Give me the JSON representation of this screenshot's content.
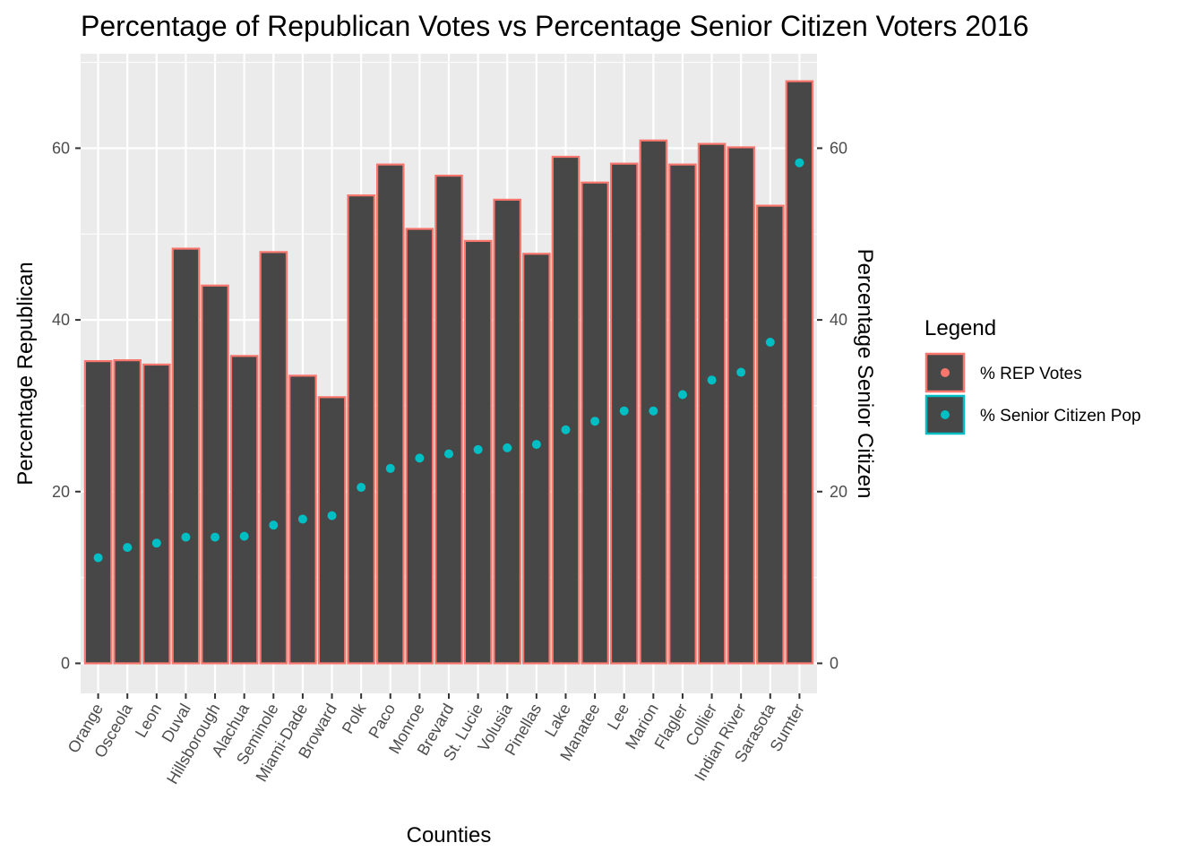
{
  "chart_data": {
    "type": "bar",
    "title": "Percentage of Republican Votes vs Percentage Senior Citizen Voters 2016",
    "xlabel": "Counties",
    "ylabel": "Percentage Republican",
    "y2label": "Percentage Senior Citizen",
    "ylim": [
      -3.5,
      71
    ],
    "yticks": [
      0,
      20,
      40,
      60
    ],
    "grid": true,
    "categories": [
      "Orange",
      "Osceola",
      "Leon",
      "Duval",
      "Hillsborough",
      "Alachua",
      "Seminole",
      "Miami-Dade",
      "Broward",
      "Polk",
      "Paco",
      "Monroe",
      "Brevard",
      "St. Lucie",
      "Volusia",
      "Pinellas",
      "Lake",
      "Manatee",
      "Lee",
      "Marion",
      "Flagler",
      "Collier",
      "Indian River",
      "Sarasota",
      "Sumter"
    ],
    "series": [
      {
        "name": "% REP Votes",
        "type": "bar",
        "color": "#F8766D",
        "fill": "#474747",
        "values": [
          35.2,
          35.3,
          34.8,
          48.3,
          44.0,
          35.8,
          47.9,
          33.5,
          31.0,
          54.5,
          58.1,
          50.6,
          56.8,
          49.2,
          54.0,
          47.7,
          59.0,
          56.0,
          58.2,
          60.9,
          58.1,
          60.5,
          60.1,
          53.3,
          67.8
        ]
      },
      {
        "name": "% Senior Citizen Pop",
        "type": "scatter",
        "color": "#00BFC4",
        "values": [
          12.3,
          13.5,
          14.0,
          14.7,
          14.7,
          14.8,
          16.1,
          16.8,
          17.2,
          20.5,
          22.7,
          23.9,
          24.4,
          24.9,
          25.1,
          25.5,
          27.2,
          28.2,
          29.4,
          29.4,
          31.3,
          33.0,
          33.9,
          37.4,
          58.3
        ]
      }
    ],
    "legend": {
      "title": "Legend",
      "placement": "right"
    }
  }
}
